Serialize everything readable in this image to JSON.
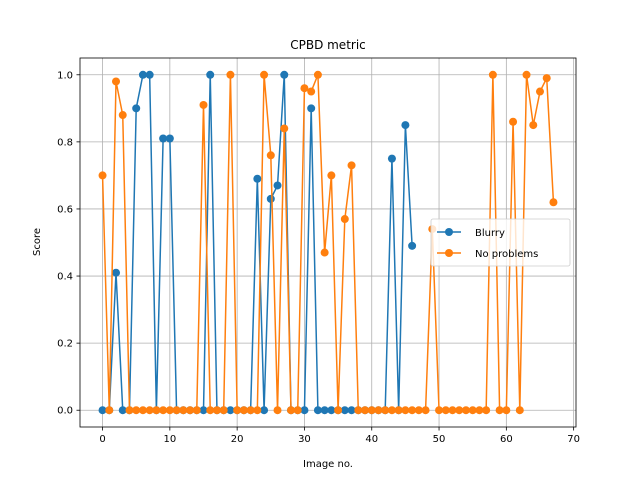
{
  "chart_data": {
    "type": "line",
    "title": "CPBD metric",
    "xlabel": "Image no.",
    "ylabel": "Score",
    "xlim": [
      -3.35,
      70.35
    ],
    "ylim": [
      -0.05,
      1.05
    ],
    "xticks": [
      0,
      10,
      20,
      30,
      40,
      50,
      60,
      70
    ],
    "yticks": [
      0.0,
      0.2,
      0.4,
      0.6,
      0.8,
      1.0
    ],
    "xtick_labels": [
      "0",
      "10",
      "20",
      "30",
      "40",
      "50",
      "60",
      "70"
    ],
    "ytick_labels": [
      "0.0",
      "0.2",
      "0.4",
      "0.6",
      "0.8",
      "1.0"
    ],
    "grid": true,
    "legend_position": "center-right",
    "series": [
      {
        "name": "Blurry",
        "color": "#1f77b4",
        "x": [
          0,
          1,
          2,
          3,
          4,
          5,
          6,
          7,
          8,
          9,
          10,
          11,
          12,
          13,
          14,
          15,
          16,
          17,
          18,
          19,
          20,
          21,
          22,
          23,
          24,
          25,
          26,
          27,
          28,
          29,
          30,
          31,
          32,
          33,
          34,
          35,
          36,
          37,
          38,
          39,
          40,
          41,
          42,
          43,
          44,
          45,
          46
        ],
        "y": [
          0,
          0,
          0.41,
          0,
          0,
          0.9,
          1.0,
          1.0,
          0,
          0.81,
          0.81,
          0,
          0,
          0,
          0,
          0,
          1.0,
          0,
          0,
          0,
          0,
          0,
          0,
          0.69,
          0,
          0.63,
          0.67,
          1.0,
          0,
          0,
          0,
          0.9,
          0,
          0,
          0,
          0,
          0,
          0,
          0,
          0,
          0,
          0,
          0,
          0.75,
          0,
          0.85,
          0.49
        ]
      },
      {
        "name": "No problems",
        "color": "#ff7f0e",
        "x": [
          0,
          1,
          2,
          3,
          4,
          5,
          6,
          7,
          8,
          9,
          10,
          11,
          12,
          13,
          14,
          15,
          16,
          17,
          18,
          19,
          20,
          21,
          22,
          23,
          24,
          25,
          26,
          27,
          28,
          29,
          30,
          31,
          32,
          33,
          34,
          35,
          36,
          37,
          38,
          39,
          40,
          41,
          42,
          43,
          44,
          45,
          46,
          47,
          48,
          49,
          50,
          51,
          52,
          53,
          54,
          55,
          56,
          57,
          58,
          59,
          60,
          61,
          62,
          63,
          64,
          65,
          66,
          67
        ],
        "y": [
          0.7,
          0,
          0.98,
          0.88,
          0,
          0,
          0,
          0,
          0,
          0,
          0,
          0,
          0,
          0,
          0,
          0.91,
          0,
          0,
          0,
          1.0,
          0,
          0,
          0,
          0,
          1.0,
          0.76,
          0,
          0.84,
          0,
          0,
          0.96,
          0.95,
          1.0,
          0.47,
          0.7,
          0,
          0.57,
          0.73,
          0,
          0,
          0,
          0,
          0,
          0,
          0,
          0,
          0,
          0,
          0,
          0.54,
          0,
          0,
          0,
          0,
          0,
          0,
          0,
          0,
          1.0,
          0,
          0,
          0.86,
          0,
          1.0,
          0.85,
          0.95,
          0.99,
          0.62
        ]
      }
    ]
  }
}
